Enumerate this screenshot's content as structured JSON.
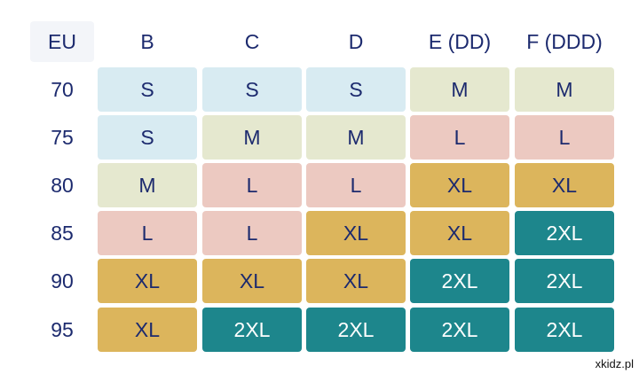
{
  "table": {
    "header": [
      "EU",
      "B",
      "C",
      "D",
      "E (DD)",
      "F (DDD)"
    ],
    "rows": [
      [
        70,
        "S",
        "S",
        "S",
        "M",
        "M"
      ],
      [
        75,
        "S",
        "M",
        "M",
        "L",
        "L"
      ],
      [
        80,
        "M",
        "L",
        "L",
        "XL",
        "XL"
      ],
      [
        85,
        "L",
        "L",
        "XL",
        "XL",
        "2XL"
      ],
      [
        90,
        "XL",
        "XL",
        "XL",
        "2XL",
        "2XL"
      ],
      [
        95,
        "XL",
        "2XL",
        "2XL",
        "2XL",
        "2XL"
      ]
    ]
  },
  "watermark": "xkidz.pl"
}
